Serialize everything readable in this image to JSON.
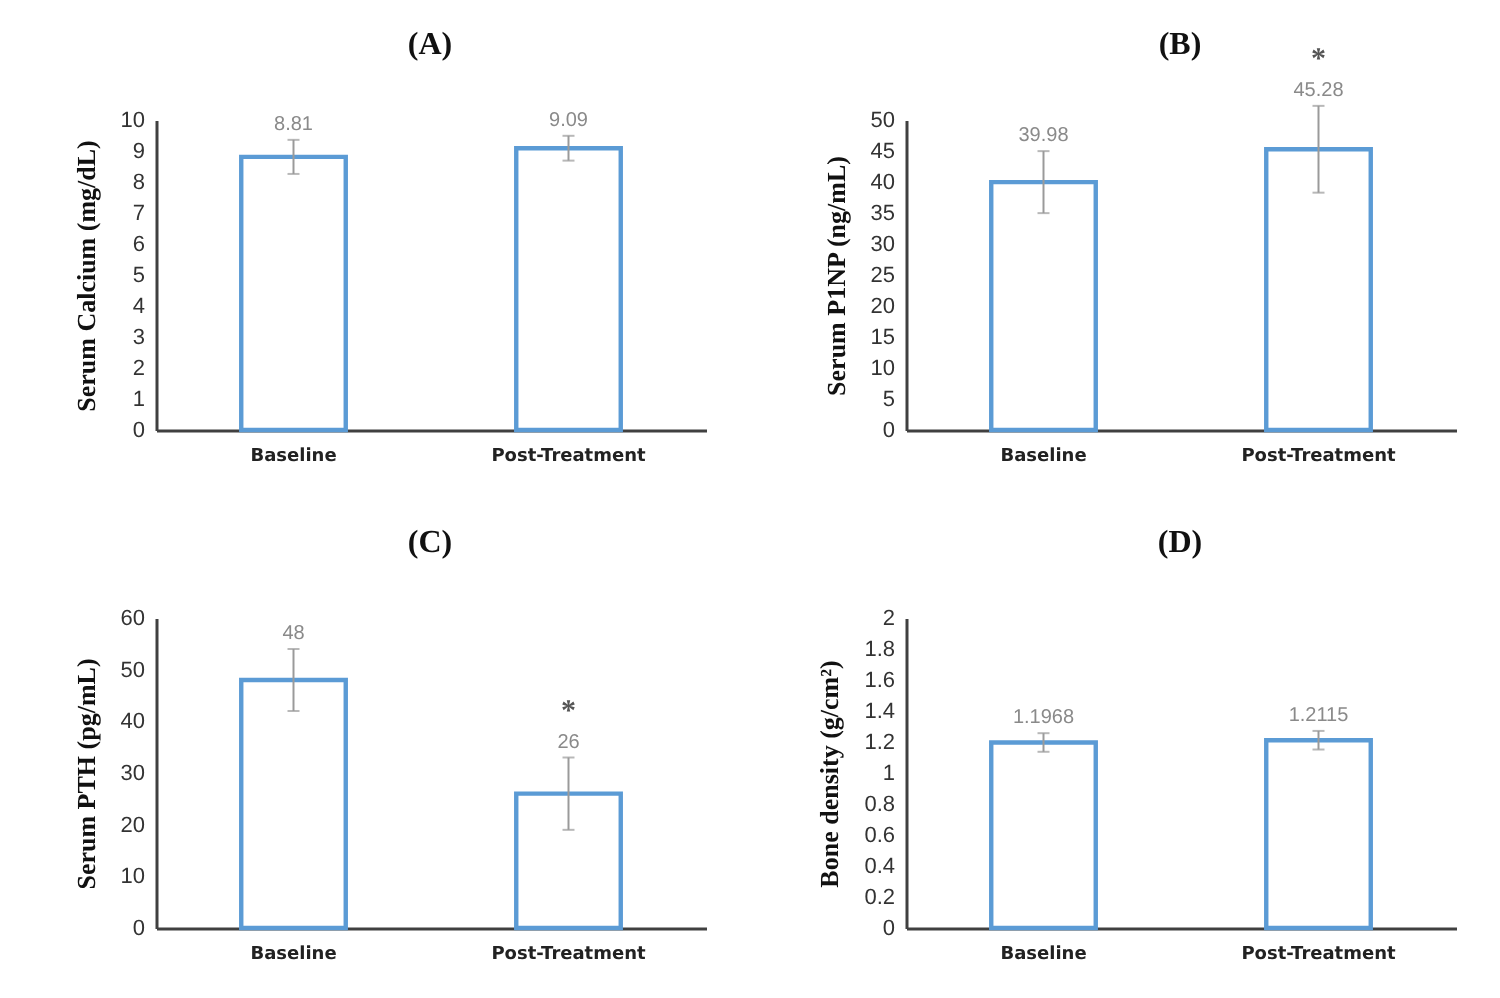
{
  "chart_data": [
    {
      "type": "bar",
      "title": "(A)",
      "ylabel": "Serum Calcium (mg/dL)",
      "categories": [
        "Baseline",
        "Post-Treatment"
      ],
      "values": [
        8.81,
        9.09
      ],
      "errors": [
        0.55,
        0.4
      ],
      "color": "#5b9bd5",
      "data_labels": true,
      "ylim": [
        0,
        10
      ],
      "yticks": [
        0,
        1,
        2,
        3,
        4,
        5,
        6,
        7,
        8,
        9,
        10
      ],
      "grid": false
    },
    {
      "type": "bar",
      "title": "(B)",
      "ylabel": "Serum P1NP (ng/mL)",
      "categories": [
        "Baseline",
        "Post-Treatment"
      ],
      "values": [
        39.98,
        45.28
      ],
      "errors": [
        5,
        7
      ],
      "color": "#5b9bd5",
      "data_labels": true,
      "ylim": [
        0,
        50
      ],
      "yticks": [
        0,
        5,
        10,
        15,
        20,
        25,
        30,
        35,
        40,
        45,
        50
      ],
      "grid": false,
      "annotations": [
        "*"
      ]
    },
    {
      "type": "bar",
      "title": "(C)",
      "ylabel": "Serum PTH (pg/mL)",
      "categories": [
        "Baseline",
        "Post-Treatment"
      ],
      "values": [
        48,
        26
      ],
      "errors": [
        6,
        7
      ],
      "color": "#5b9bd5",
      "data_labels": true,
      "ylim": [
        0,
        60
      ],
      "yticks": [
        0,
        10,
        20,
        30,
        40,
        50,
        60
      ],
      "grid": false,
      "annotations": [
        "*"
      ]
    },
    {
      "type": "bar",
      "title": "(D)",
      "ylabel": "Bone density (g/cm²)",
      "categories": [
        "Baseline",
        "Post-Treatment"
      ],
      "values": [
        1.1968,
        1.2115
      ],
      "errors": [
        0.06,
        0.06
      ],
      "color": "#5b9bd5",
      "data_labels": true,
      "ylim": [
        0,
        2
      ],
      "yticks": [
        0,
        0.2,
        0.4,
        0.6,
        0.8,
        1,
        1.2,
        1.4,
        1.6,
        1.8,
        2
      ],
      "grid": false
    }
  ]
}
